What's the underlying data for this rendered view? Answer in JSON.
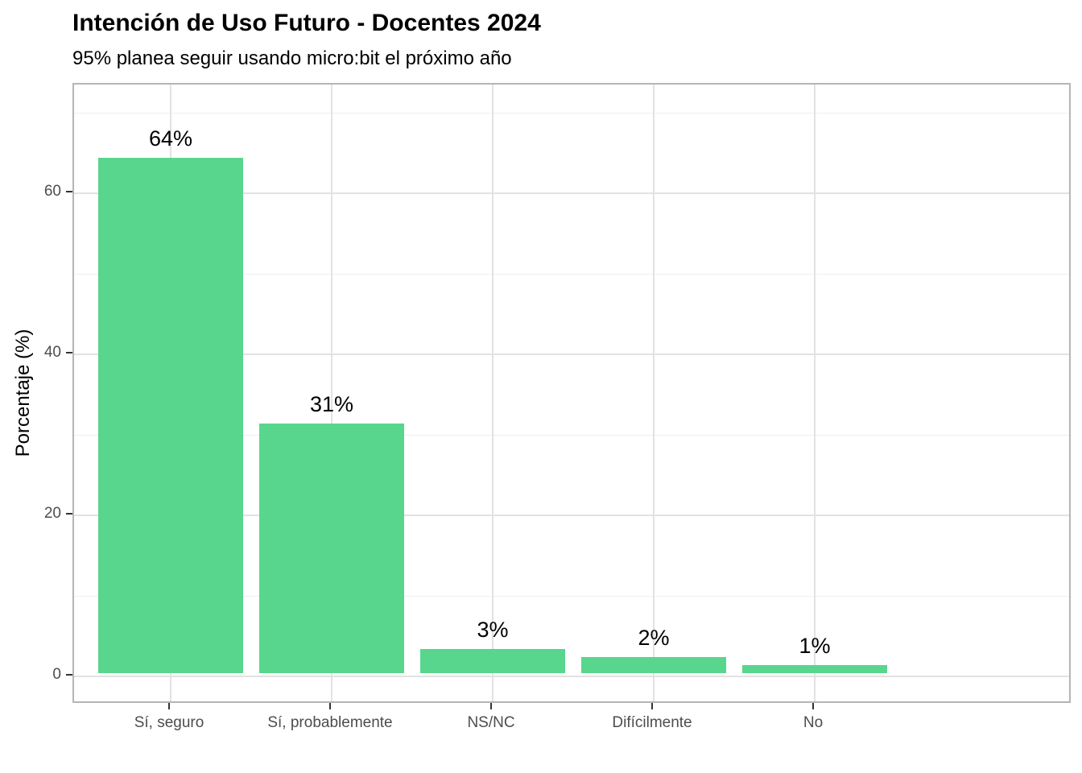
{
  "chart_data": {
    "type": "bar",
    "title": "Intención de Uso Futuro - Docentes 2024",
    "subtitle": "95% planea seguir usando micro:bit el próximo año",
    "xlabel": "",
    "ylabel": "Porcentaje (%)",
    "categories": [
      "Sí, seguro",
      "Sí, probablemente",
      "NS/NC",
      "Difícilmente",
      "No"
    ],
    "values": [
      64,
      31,
      3,
      2,
      1
    ],
    "bar_labels": [
      "64%",
      "31%",
      "3%",
      "2%",
      "1%"
    ],
    "y_major_ticks": [
      0,
      20,
      40,
      60
    ],
    "y_minor_ticks": [
      10,
      30,
      50,
      70
    ],
    "ylim": [
      0,
      70
    ],
    "grid": "major and minor horizontal, major vertical at category centers",
    "legend_position": "none",
    "colors": {
      "bar": "#58D68D",
      "grid_major": "#e2e2e2",
      "grid_minor": "#efefef",
      "panel_border": "#b5b5b5",
      "axis_text": "#4d4d4d",
      "tick_mark": "#333333",
      "text": "#000000",
      "background": "#ffffff"
    }
  }
}
